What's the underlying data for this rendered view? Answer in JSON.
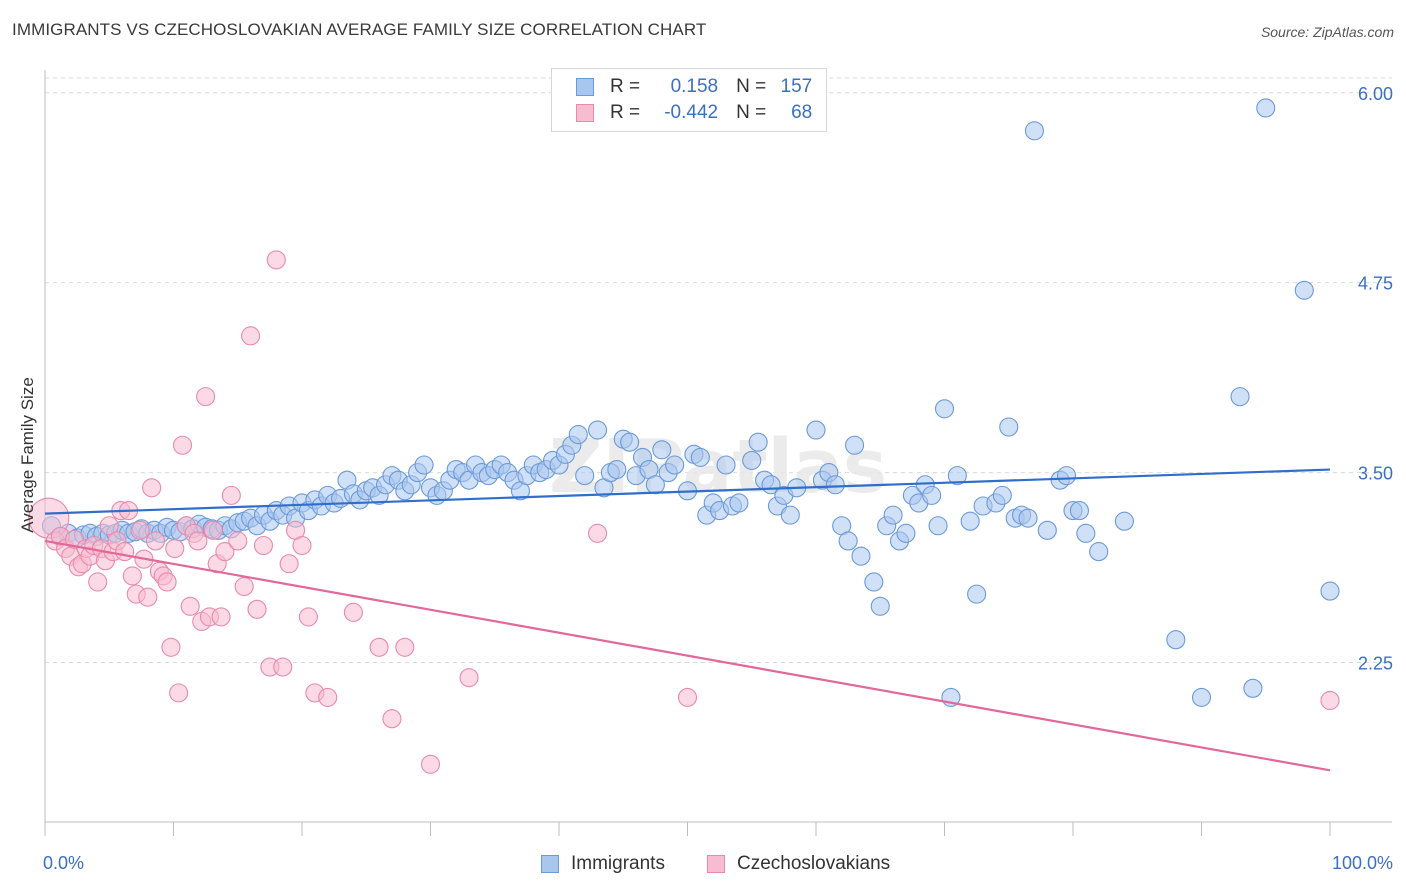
{
  "header": {
    "title": "IMMIGRANTS VS CZECHOSLOVAKIAN AVERAGE FAMILY SIZE CORRELATION CHART",
    "source": "Source: ZipAtlas.com"
  },
  "legend": {
    "rows": [
      {
        "r_label": "R =",
        "r_value": "0.158",
        "n_label": "N =",
        "n_value": "157"
      },
      {
        "r_label": "R =",
        "r_value": "-0.442",
        "n_label": "N =",
        "n_value": "68"
      }
    ]
  },
  "bottom_legend": {
    "items": [
      {
        "label": "Immigrants"
      },
      {
        "label": "Czechoslovakians"
      }
    ]
  },
  "colors": {
    "blue_fill": "#a9c6ef",
    "blue_stroke": "#6b9ad8",
    "blue_line": "#2f6fcb",
    "pink_fill": "#f7bcd0",
    "pink_stroke": "#e98aab",
    "pink_line": "#e2679a",
    "tick_label": "#3b6fc4",
    "grid": "#d9d9d9"
  },
  "chart_data": {
    "type": "scatter",
    "title": "IMMIGRANTS VS CZECHOSLOVAKIAN AVERAGE FAMILY SIZE CORRELATION CHART",
    "xlabel": "",
    "ylabel": "Average Family Size",
    "xlim": [
      0,
      100
    ],
    "ylim": [
      1.2,
      6.15
    ],
    "x_tick_labels": [
      "0.0%",
      "100.0%"
    ],
    "y_ticks": [
      2.25,
      3.5,
      4.75,
      6.0
    ],
    "y_tick_labels": [
      "2.25",
      "3.50",
      "4.75",
      "6.00"
    ],
    "grid": true,
    "watermark": "ZIPatlas",
    "series": [
      {
        "name": "Immigrants",
        "color": "#6b9ad8",
        "trend": {
          "x": [
            0,
            100
          ],
          "y": [
            3.23,
            3.52
          ]
        },
        "points": [
          [
            0.5,
            3.15
          ],
          [
            1.2,
            3.08
          ],
          [
            1.8,
            3.1
          ],
          [
            2.5,
            3.07
          ],
          [
            3,
            3.09
          ],
          [
            3.5,
            3.1
          ],
          [
            4,
            3.08
          ],
          [
            4.5,
            3.1
          ],
          [
            5,
            3.09
          ],
          [
            5.5,
            3.1
          ],
          [
            6,
            3.12
          ],
          [
            6.5,
            3.1
          ],
          [
            7,
            3.11
          ],
          [
            7.5,
            3.13
          ],
          [
            8,
            3.1
          ],
          [
            8.5,
            3.12
          ],
          [
            9,
            3.1
          ],
          [
            9.5,
            3.14
          ],
          [
            10,
            3.12
          ],
          [
            10.5,
            3.11
          ],
          [
            11,
            3.15
          ],
          [
            11.5,
            3.13
          ],
          [
            12,
            3.16
          ],
          [
            12.5,
            3.14
          ],
          [
            13,
            3.13
          ],
          [
            13.5,
            3.12
          ],
          [
            14,
            3.15
          ],
          [
            14.5,
            3.13
          ],
          [
            15,
            3.17
          ],
          [
            15.5,
            3.18
          ],
          [
            16,
            3.2
          ],
          [
            16.5,
            3.15
          ],
          [
            17,
            3.22
          ],
          [
            17.5,
            3.18
          ],
          [
            18,
            3.25
          ],
          [
            18.5,
            3.22
          ],
          [
            19,
            3.28
          ],
          [
            19.5,
            3.2
          ],
          [
            20,
            3.3
          ],
          [
            20.5,
            3.25
          ],
          [
            21,
            3.32
          ],
          [
            21.5,
            3.28
          ],
          [
            22,
            3.35
          ],
          [
            22.5,
            3.3
          ],
          [
            23,
            3.33
          ],
          [
            23.5,
            3.45
          ],
          [
            24,
            3.36
          ],
          [
            24.5,
            3.32
          ],
          [
            25,
            3.38
          ],
          [
            25.5,
            3.4
          ],
          [
            26,
            3.35
          ],
          [
            26.5,
            3.42
          ],
          [
            27,
            3.48
          ],
          [
            27.5,
            3.45
          ],
          [
            28,
            3.38
          ],
          [
            28.5,
            3.42
          ],
          [
            29,
            3.5
          ],
          [
            29.5,
            3.55
          ],
          [
            30,
            3.4
          ],
          [
            30.5,
            3.35
          ],
          [
            31,
            3.38
          ],
          [
            31.5,
            3.45
          ],
          [
            32,
            3.52
          ],
          [
            32.5,
            3.5
          ],
          [
            33,
            3.45
          ],
          [
            33.5,
            3.55
          ],
          [
            34,
            3.5
          ],
          [
            34.5,
            3.48
          ],
          [
            35,
            3.52
          ],
          [
            35.5,
            3.55
          ],
          [
            36,
            3.5
          ],
          [
            36.5,
            3.45
          ],
          [
            37,
            3.38
          ],
          [
            37.5,
            3.48
          ],
          [
            38,
            3.55
          ],
          [
            38.5,
            3.5
          ],
          [
            39,
            3.52
          ],
          [
            39.5,
            3.58
          ],
          [
            40,
            3.55
          ],
          [
            40.5,
            3.62
          ],
          [
            41,
            3.68
          ],
          [
            41.5,
            3.75
          ],
          [
            42,
            3.48
          ],
          [
            43,
            3.78
          ],
          [
            43.5,
            3.4
          ],
          [
            44,
            3.5
          ],
          [
            44.5,
            3.52
          ],
          [
            45,
            3.72
          ],
          [
            45.5,
            3.7
          ],
          [
            46,
            3.48
          ],
          [
            46.5,
            3.6
          ],
          [
            47,
            3.52
          ],
          [
            47.5,
            3.42
          ],
          [
            48,
            3.65
          ],
          [
            48.5,
            3.5
          ],
          [
            49,
            3.55
          ],
          [
            50,
            3.38
          ],
          [
            50.5,
            3.62
          ],
          [
            51,
            3.6
          ],
          [
            51.5,
            3.22
          ],
          [
            52,
            3.3
          ],
          [
            52.5,
            3.25
          ],
          [
            53,
            3.55
          ],
          [
            53.5,
            3.28
          ],
          [
            54,
            3.3
          ],
          [
            55,
            3.58
          ],
          [
            55.5,
            3.7
          ],
          [
            56,
            3.45
          ],
          [
            56.5,
            3.42
          ],
          [
            57,
            3.28
          ],
          [
            57.5,
            3.35
          ],
          [
            58,
            3.22
          ],
          [
            58.5,
            3.4
          ],
          [
            60,
            3.78
          ],
          [
            60.5,
            3.45
          ],
          [
            61,
            3.5
          ],
          [
            61.5,
            3.42
          ],
          [
            62,
            3.15
          ],
          [
            62.5,
            3.05
          ],
          [
            63,
            3.68
          ],
          [
            63.5,
            2.95
          ],
          [
            64.5,
            2.78
          ],
          [
            65,
            2.62
          ],
          [
            65.5,
            3.15
          ],
          [
            66,
            3.22
          ],
          [
            66.5,
            3.05
          ],
          [
            67,
            3.1
          ],
          [
            67.5,
            3.35
          ],
          [
            68,
            3.3
          ],
          [
            68.5,
            3.42
          ],
          [
            69,
            3.35
          ],
          [
            69.5,
            3.15
          ],
          [
            70,
            3.92
          ],
          [
            70.5,
            2.02
          ],
          [
            71,
            3.48
          ],
          [
            72,
            3.18
          ],
          [
            72.5,
            2.7
          ],
          [
            73,
            3.28
          ],
          [
            74,
            3.3
          ],
          [
            74.5,
            3.35
          ],
          [
            75,
            3.8
          ],
          [
            75.5,
            3.2
          ],
          [
            76,
            3.22
          ],
          [
            76.5,
            3.2
          ],
          [
            77,
            5.75
          ],
          [
            78,
            3.12
          ],
          [
            79,
            3.45
          ],
          [
            79.5,
            3.48
          ],
          [
            80,
            3.25
          ],
          [
            80.5,
            3.25
          ],
          [
            81,
            3.1
          ],
          [
            82,
            2.98
          ],
          [
            84,
            3.18
          ],
          [
            88,
            2.4
          ],
          [
            90,
            2.02
          ],
          [
            93,
            4.0
          ],
          [
            94,
            2.08
          ],
          [
            95,
            5.9
          ],
          [
            98,
            4.7
          ],
          [
            100,
            2.72
          ]
        ]
      },
      {
        "name": "Czechoslovakians",
        "color": "#e98aab",
        "trend": {
          "x": [
            0,
            100
          ],
          "y": [
            3.05,
            1.54
          ]
        },
        "points": [
          [
            0.3,
            3.2
          ],
          [
            0.8,
            3.05
          ],
          [
            1.2,
            3.08
          ],
          [
            1.6,
            3.0
          ],
          [
            2,
            2.95
          ],
          [
            2.3,
            3.06
          ],
          [
            2.6,
            2.88
          ],
          [
            2.9,
            2.9
          ],
          [
            3.2,
            3.0
          ],
          [
            3.5,
            2.95
          ],
          [
            3.8,
            3.02
          ],
          [
            4.1,
            2.78
          ],
          [
            4.4,
            3.0
          ],
          [
            4.7,
            2.92
          ],
          [
            5,
            3.15
          ],
          [
            5.3,
            2.98
          ],
          [
            5.6,
            3.05
          ],
          [
            5.9,
            3.25
          ],
          [
            6.2,
            2.98
          ],
          [
            6.5,
            3.25
          ],
          [
            6.8,
            2.82
          ],
          [
            7.1,
            2.7
          ],
          [
            7.4,
            3.12
          ],
          [
            7.7,
            2.93
          ],
          [
            8,
            2.68
          ],
          [
            8.3,
            3.4
          ],
          [
            8.6,
            3.05
          ],
          [
            8.9,
            2.85
          ],
          [
            9.2,
            2.82
          ],
          [
            9.5,
            2.78
          ],
          [
            9.8,
            2.35
          ],
          [
            10.1,
            3.0
          ],
          [
            10.4,
            2.05
          ],
          [
            10.7,
            3.68
          ],
          [
            11,
            3.15
          ],
          [
            11.3,
            2.62
          ],
          [
            11.6,
            3.1
          ],
          [
            11.9,
            3.05
          ],
          [
            12.2,
            2.52
          ],
          [
            12.5,
            4.0
          ],
          [
            12.8,
            2.55
          ],
          [
            13.1,
            3.12
          ],
          [
            13.4,
            2.9
          ],
          [
            13.7,
            2.55
          ],
          [
            14,
            2.98
          ],
          [
            14.5,
            3.35
          ],
          [
            15,
            3.05
          ],
          [
            15.5,
            2.75
          ],
          [
            16,
            4.4
          ],
          [
            16.5,
            2.6
          ],
          [
            17,
            3.02
          ],
          [
            17.5,
            2.22
          ],
          [
            18,
            4.9
          ],
          [
            18.5,
            2.22
          ],
          [
            19,
            2.9
          ],
          [
            19.5,
            3.12
          ],
          [
            20,
            3.02
          ],
          [
            20.5,
            2.55
          ],
          [
            21,
            2.05
          ],
          [
            22,
            2.02
          ],
          [
            24,
            2.58
          ],
          [
            26,
            2.35
          ],
          [
            27,
            1.88
          ],
          [
            28,
            2.35
          ],
          [
            30,
            1.58
          ],
          [
            33,
            2.15
          ],
          [
            43,
            3.1
          ],
          [
            50,
            2.02
          ],
          [
            100,
            2.0
          ]
        ]
      }
    ]
  }
}
